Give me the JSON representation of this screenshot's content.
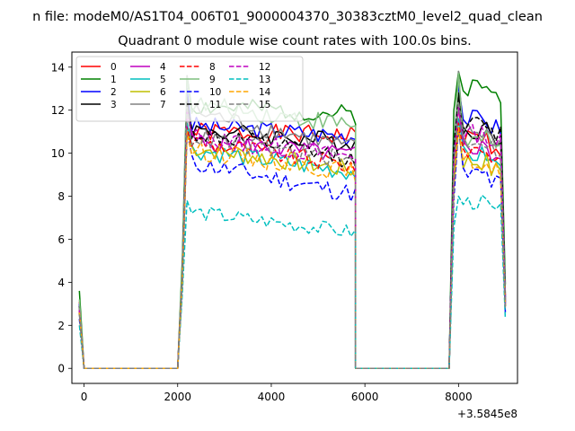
{
  "chart_data": {
    "type": "line",
    "suptitle": "n file: modeM0/AS1T04_006T01_9000004370_30383cztM0_level2_quad_clean",
    "title": "Quadrant 0 module wise count rates with 100.0s bins.",
    "xlabel": "",
    "ylabel": "",
    "x_offset_label": "+3.5845e8",
    "xlim": [
      -260,
      9260
    ],
    "ylim": [
      -0.7,
      14.7
    ],
    "xticks": [
      0,
      2000,
      4000,
      6000,
      8000
    ],
    "xtick_labels": [
      "0",
      "2000",
      "4000",
      "6000",
      "8000"
    ],
    "yticks": [
      0,
      2,
      4,
      6,
      8,
      10,
      12,
      14
    ],
    "ytick_labels": [
      "0",
      "2",
      "4",
      "6",
      "8",
      "10",
      "12",
      "14"
    ],
    "legend": {
      "location": "upper-left",
      "columns": 4
    },
    "segments": [
      {
        "x_start": -100,
        "n": 3,
        "step": 100
      },
      {
        "x_start": 2000,
        "n": 39,
        "step": 100
      },
      {
        "x_start": 5800,
        "n": 1,
        "step": 2000
      },
      {
        "x_start": 7800,
        "n": 13,
        "step": 100
      }
    ],
    "series": [
      {
        "name": "0",
        "color": "#ff0000",
        "style": "solid",
        "levels": [
          11.0,
          10.8,
          10.7
        ],
        "peak": 12.0,
        "noise": 0.45,
        "edge": 3.1,
        "seed": 1
      },
      {
        "name": "1",
        "color": "#008000",
        "style": "solid",
        "levels": [
          12.2,
          11.8,
          13.1
        ],
        "peak": 13.6,
        "noise": 0.45,
        "edge": 3.6,
        "seed": 2
      },
      {
        "name": "2",
        "color": "#0000ff",
        "style": "solid",
        "levels": [
          11.3,
          10.8,
          11.6
        ],
        "peak": 13.0,
        "noise": 0.45,
        "edge": 3.0,
        "seed": 3
      },
      {
        "name": "3",
        "color": "#000000",
        "style": "solid",
        "levels": [
          11.1,
          10.5,
          11.1
        ],
        "peak": 12.6,
        "noise": 0.45,
        "edge": 2.9,
        "seed": 4
      },
      {
        "name": "4",
        "color": "#bf00bf",
        "style": "solid",
        "levels": [
          10.6,
          9.9,
          10.3
        ],
        "peak": 12.0,
        "noise": 0.45,
        "edge": 2.8,
        "seed": 5
      },
      {
        "name": "5",
        "color": "#00bfbf",
        "style": "solid",
        "levels": [
          10.2,
          9.1,
          9.9
        ],
        "peak": 11.4,
        "noise": 0.45,
        "edge": 2.7,
        "seed": 6
      },
      {
        "name": "6",
        "color": "#bfbf00",
        "style": "solid",
        "levels": [
          10.3,
          9.2,
          9.6
        ],
        "peak": 11.0,
        "noise": 0.45,
        "edge": 2.6,
        "seed": 7
      },
      {
        "name": "7",
        "color": "#808080",
        "style": "solid",
        "levels": [
          12.0,
          10.2,
          11.0
        ],
        "peak": 13.6,
        "noise": 0.45,
        "edge": 2.8,
        "seed": 8
      },
      {
        "name": "8",
        "color": "#ff0000",
        "style": "dashed",
        "levels": [
          10.6,
          9.4,
          10.2
        ],
        "peak": 11.2,
        "noise": 0.45,
        "edge": 2.7,
        "seed": 9
      },
      {
        "name": "9",
        "color": "#7fbf7f",
        "style": "solid",
        "levels": [
          12.3,
          11.3,
          10.6
        ],
        "peak": 13.5,
        "noise": 0.45,
        "edge": 3.2,
        "seed": 10
      },
      {
        "name": "10",
        "color": "#0000ff",
        "style": "dashed",
        "levels": [
          9.6,
          8.1,
          9.0
        ],
        "peak": 11.0,
        "noise": 0.45,
        "edge": 2.3,
        "seed": 11
      },
      {
        "name": "11",
        "color": "#000000",
        "style": "dashed",
        "levels": [
          11.0,
          9.7,
          11.3
        ],
        "peak": 12.4,
        "noise": 0.45,
        "edge": 2.6,
        "seed": 12
      },
      {
        "name": "12",
        "color": "#bf00bf",
        "style": "dashed",
        "levels": [
          10.8,
          9.8,
          10.9
        ],
        "peak": 12.0,
        "noise": 0.45,
        "edge": 2.7,
        "seed": 13
      },
      {
        "name": "13",
        "color": "#00bfbf",
        "style": "dashed",
        "levels": [
          7.3,
          6.3,
          7.7
        ],
        "peak": 7.8,
        "noise": 0.35,
        "edge": 2.0,
        "seed": 14
      },
      {
        "name": "14",
        "color": "#ffa500",
        "style": "dashed",
        "levels": [
          10.2,
          9.1,
          9.6
        ],
        "peak": 11.0,
        "noise": 0.45,
        "edge": 2.6,
        "seed": 15
      },
      {
        "name": "15",
        "color": "#808080",
        "style": "dashed",
        "levels": [
          10.8,
          9.6,
          10.6
        ],
        "peak": 12.2,
        "noise": 0.45,
        "edge": 2.5,
        "seed": 16
      }
    ]
  }
}
